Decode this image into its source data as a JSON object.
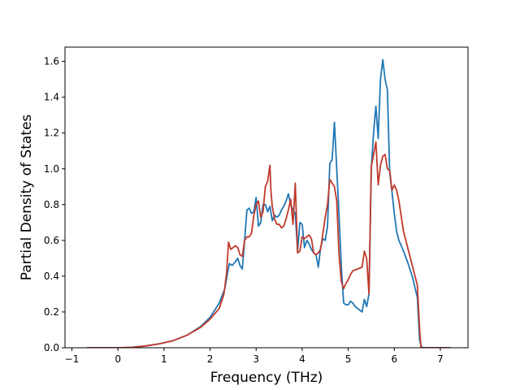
{
  "chart_data": {
    "type": "line",
    "title": "",
    "xlabel": "Frequency (THz)",
    "ylabel": "Partial Density of States",
    "xlim": [
      -1.15,
      7.6
    ],
    "ylim": [
      0.0,
      1.68
    ],
    "xticks": [
      -1,
      0,
      1,
      2,
      3,
      4,
      5,
      6,
      7
    ],
    "xtick_labels": [
      "−1",
      "0",
      "1",
      "2",
      "3",
      "4",
      "5",
      "6",
      "7"
    ],
    "yticks": [
      0.0,
      0.2,
      0.4,
      0.6,
      0.8,
      1.0,
      1.2,
      1.4,
      1.6
    ],
    "ytick_labels": [
      "0.0",
      "0.2",
      "0.4",
      "0.6",
      "0.8",
      "1.0",
      "1.2",
      "1.4",
      "1.6"
    ],
    "grid": false,
    "legend": "none",
    "series": [
      {
        "color": "#1f77b4",
        "points": [
          [
            -0.68,
            0.0
          ],
          [
            0.0,
            0.0
          ],
          [
            0.3,
            0.002
          ],
          [
            0.6,
            0.01
          ],
          [
            0.9,
            0.022
          ],
          [
            1.2,
            0.04
          ],
          [
            1.5,
            0.07
          ],
          [
            1.8,
            0.12
          ],
          [
            2.0,
            0.17
          ],
          [
            2.2,
            0.25
          ],
          [
            2.32,
            0.33
          ],
          [
            2.38,
            0.42
          ],
          [
            2.42,
            0.47
          ],
          [
            2.48,
            0.46
          ],
          [
            2.55,
            0.48
          ],
          [
            2.6,
            0.5
          ],
          [
            2.65,
            0.46
          ],
          [
            2.7,
            0.44
          ],
          [
            2.75,
            0.6
          ],
          [
            2.8,
            0.77
          ],
          [
            2.85,
            0.78
          ],
          [
            2.9,
            0.75
          ],
          [
            2.95,
            0.76
          ],
          [
            3.0,
            0.84
          ],
          [
            3.05,
            0.68
          ],
          [
            3.1,
            0.7
          ],
          [
            3.15,
            0.8
          ],
          [
            3.2,
            0.8
          ],
          [
            3.25,
            0.76
          ],
          [
            3.3,
            0.79
          ],
          [
            3.35,
            0.71
          ],
          [
            3.4,
            0.74
          ],
          [
            3.45,
            0.73
          ],
          [
            3.5,
            0.74
          ],
          [
            3.55,
            0.77
          ],
          [
            3.6,
            0.79
          ],
          [
            3.65,
            0.82
          ],
          [
            3.7,
            0.86
          ],
          [
            3.75,
            0.8
          ],
          [
            3.8,
            0.77
          ],
          [
            3.85,
            0.75
          ],
          [
            3.9,
            0.54
          ],
          [
            3.95,
            0.7
          ],
          [
            4.0,
            0.69
          ],
          [
            4.05,
            0.56
          ],
          [
            4.1,
            0.6
          ],
          [
            4.15,
            0.58
          ],
          [
            4.2,
            0.55
          ],
          [
            4.25,
            0.53
          ],
          [
            4.3,
            0.52
          ],
          [
            4.35,
            0.45
          ],
          [
            4.4,
            0.56
          ],
          [
            4.45,
            0.61
          ],
          [
            4.5,
            0.6
          ],
          [
            4.55,
            0.68
          ],
          [
            4.6,
            1.03
          ],
          [
            4.65,
            1.05
          ],
          [
            4.7,
            1.26
          ],
          [
            4.75,
            1.0
          ],
          [
            4.8,
            0.74
          ],
          [
            4.85,
            0.45
          ],
          [
            4.9,
            0.25
          ],
          [
            4.95,
            0.24
          ],
          [
            5.0,
            0.24
          ],
          [
            5.05,
            0.26
          ],
          [
            5.1,
            0.25
          ],
          [
            5.15,
            0.23
          ],
          [
            5.2,
            0.22
          ],
          [
            5.3,
            0.2
          ],
          [
            5.35,
            0.27
          ],
          [
            5.4,
            0.23
          ],
          [
            5.45,
            0.3
          ],
          [
            5.5,
            1.0
          ],
          [
            5.55,
            1.2
          ],
          [
            5.6,
            1.35
          ],
          [
            5.65,
            1.17
          ],
          [
            5.7,
            1.5
          ],
          [
            5.75,
            1.61
          ],
          [
            5.8,
            1.5
          ],
          [
            5.85,
            1.44
          ],
          [
            5.9,
            0.98
          ],
          [
            5.95,
            0.87
          ],
          [
            6.0,
            0.75
          ],
          [
            6.05,
            0.65
          ],
          [
            6.1,
            0.6
          ],
          [
            6.2,
            0.54
          ],
          [
            6.3,
            0.47
          ],
          [
            6.4,
            0.39
          ],
          [
            6.5,
            0.28
          ],
          [
            6.55,
            0.04
          ],
          [
            6.6,
            0.0
          ],
          [
            7.0,
            0.0
          ],
          [
            7.22,
            0.0
          ]
        ]
      },
      {
        "color": "#c0392b",
        "points": [
          [
            -0.68,
            0.0
          ],
          [
            0.0,
            0.0
          ],
          [
            0.3,
            0.002
          ],
          [
            0.6,
            0.01
          ],
          [
            0.9,
            0.022
          ],
          [
            1.2,
            0.04
          ],
          [
            1.5,
            0.07
          ],
          [
            1.8,
            0.115
          ],
          [
            2.0,
            0.16
          ],
          [
            2.2,
            0.22
          ],
          [
            2.3,
            0.3
          ],
          [
            2.36,
            0.42
          ],
          [
            2.4,
            0.59
          ],
          [
            2.45,
            0.55
          ],
          [
            2.5,
            0.56
          ],
          [
            2.55,
            0.57
          ],
          [
            2.6,
            0.56
          ],
          [
            2.65,
            0.52
          ],
          [
            2.7,
            0.51
          ],
          [
            2.75,
            0.6
          ],
          [
            2.8,
            0.62
          ],
          [
            2.85,
            0.62
          ],
          [
            2.9,
            0.64
          ],
          [
            2.95,
            0.74
          ],
          [
            3.0,
            0.8
          ],
          [
            3.05,
            0.82
          ],
          [
            3.1,
            0.73
          ],
          [
            3.15,
            0.76
          ],
          [
            3.2,
            0.9
          ],
          [
            3.25,
            0.93
          ],
          [
            3.3,
            1.02
          ],
          [
            3.32,
            0.88
          ],
          [
            3.35,
            0.79
          ],
          [
            3.4,
            0.72
          ],
          [
            3.45,
            0.69
          ],
          [
            3.5,
            0.69
          ],
          [
            3.55,
            0.67
          ],
          [
            3.6,
            0.68
          ],
          [
            3.65,
            0.72
          ],
          [
            3.7,
            0.77
          ],
          [
            3.75,
            0.83
          ],
          [
            3.8,
            0.69
          ],
          [
            3.85,
            0.92
          ],
          [
            3.9,
            0.53
          ],
          [
            3.95,
            0.54
          ],
          [
            4.0,
            0.62
          ],
          [
            4.05,
            0.61
          ],
          [
            4.1,
            0.62
          ],
          [
            4.15,
            0.63
          ],
          [
            4.2,
            0.61
          ],
          [
            4.25,
            0.53
          ],
          [
            4.3,
            0.52
          ],
          [
            4.35,
            0.53
          ],
          [
            4.4,
            0.55
          ],
          [
            4.5,
            0.73
          ],
          [
            4.55,
            0.8
          ],
          [
            4.6,
            0.94
          ],
          [
            4.65,
            0.92
          ],
          [
            4.7,
            0.9
          ],
          [
            4.75,
            0.82
          ],
          [
            4.8,
            0.52
          ],
          [
            4.85,
            0.37
          ],
          [
            4.9,
            0.33
          ],
          [
            4.95,
            0.36
          ],
          [
            5.0,
            0.38
          ],
          [
            5.05,
            0.41
          ],
          [
            5.1,
            0.43
          ],
          [
            5.2,
            0.44
          ],
          [
            5.3,
            0.45
          ],
          [
            5.35,
            0.54
          ],
          [
            5.4,
            0.5
          ],
          [
            5.45,
            0.3
          ],
          [
            5.5,
            1.01
          ],
          [
            5.55,
            1.08
          ],
          [
            5.6,
            1.15
          ],
          [
            5.65,
            0.91
          ],
          [
            5.7,
            1.02
          ],
          [
            5.75,
            1.07
          ],
          [
            5.8,
            1.08
          ],
          [
            5.85,
            1.0
          ],
          [
            5.9,
            0.99
          ],
          [
            5.95,
            0.88
          ],
          [
            6.0,
            0.91
          ],
          [
            6.05,
            0.88
          ],
          [
            6.1,
            0.82
          ],
          [
            6.2,
            0.65
          ],
          [
            6.3,
            0.55
          ],
          [
            6.4,
            0.45
          ],
          [
            6.5,
            0.35
          ],
          [
            6.55,
            0.1
          ],
          [
            6.58,
            0.0
          ],
          [
            7.0,
            0.0
          ],
          [
            7.22,
            0.0
          ]
        ]
      }
    ]
  }
}
